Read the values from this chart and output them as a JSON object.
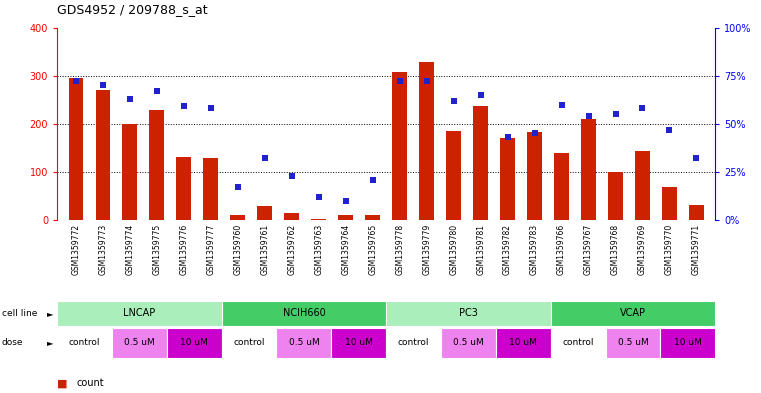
{
  "title": "GDS4952 / 209788_s_at",
  "samples": [
    "GSM1359772",
    "GSM1359773",
    "GSM1359774",
    "GSM1359775",
    "GSM1359776",
    "GSM1359777",
    "GSM1359760",
    "GSM1359761",
    "GSM1359762",
    "GSM1359763",
    "GSM1359764",
    "GSM1359765",
    "GSM1359778",
    "GSM1359779",
    "GSM1359780",
    "GSM1359781",
    "GSM1359782",
    "GSM1359783",
    "GSM1359766",
    "GSM1359767",
    "GSM1359768",
    "GSM1359769",
    "GSM1359770",
    "GSM1359771"
  ],
  "counts": [
    295,
    270,
    200,
    228,
    130,
    128,
    10,
    30,
    15,
    3,
    10,
    10,
    308,
    328,
    185,
    238,
    170,
    182,
    140,
    210,
    100,
    143,
    68,
    32
  ],
  "percentiles": [
    72,
    70,
    63,
    67,
    59,
    58,
    17,
    32,
    23,
    12,
    10,
    21,
    72,
    72,
    62,
    65,
    43,
    45,
    60,
    54,
    55,
    58,
    47,
    32
  ],
  "bar_color": "#CC2200",
  "dot_color": "#2222CC",
  "ylim_left": [
    0,
    400
  ],
  "ylim_right": [
    0,
    100
  ],
  "yticks_left": [
    0,
    100,
    200,
    300,
    400
  ],
  "ytick_labels_left": [
    "0",
    "100",
    "200",
    "300",
    "400"
  ],
  "yticks_right": [
    0,
    25,
    50,
    75,
    100
  ],
  "ytick_labels_right": [
    "0%",
    "25%",
    "50%",
    "75%",
    "100%"
  ],
  "cell_line_spans": [
    {
      "name": "LNCAP",
      "start": 0,
      "end": 6,
      "color": "#AAEEBB"
    },
    {
      "name": "NCIH660",
      "start": 6,
      "end": 12,
      "color": "#44CC66"
    },
    {
      "name": "PC3",
      "start": 12,
      "end": 18,
      "color": "#AAEEBB"
    },
    {
      "name": "VCAP",
      "start": 18,
      "end": 24,
      "color": "#44CC66"
    }
  ],
  "dose_sequence": [
    {
      "label": "control",
      "start": 0,
      "end": 2,
      "color": "#FFFFFF"
    },
    {
      "label": "0.5 uM",
      "start": 2,
      "end": 4,
      "color": "#EE82EE"
    },
    {
      "label": "10 uM",
      "start": 4,
      "end": 6,
      "color": "#CC00CC"
    },
    {
      "label": "control",
      "start": 6,
      "end": 8,
      "color": "#FFFFFF"
    },
    {
      "label": "0.5 uM",
      "start": 8,
      "end": 10,
      "color": "#EE82EE"
    },
    {
      "label": "10 uM",
      "start": 10,
      "end": 12,
      "color": "#CC00CC"
    },
    {
      "label": "control",
      "start": 12,
      "end": 14,
      "color": "#FFFFFF"
    },
    {
      "label": "0.5 uM",
      "start": 14,
      "end": 16,
      "color": "#EE82EE"
    },
    {
      "label": "10 uM",
      "start": 16,
      "end": 18,
      "color": "#CC00CC"
    },
    {
      "label": "control",
      "start": 18,
      "end": 20,
      "color": "#FFFFFF"
    },
    {
      "label": "0.5 uM",
      "start": 20,
      "end": 22,
      "color": "#EE82EE"
    },
    {
      "label": "10 uM",
      "start": 22,
      "end": 24,
      "color": "#CC00CC"
    }
  ],
  "grid_yticks": [
    100,
    200,
    300
  ],
  "chart_facecolor": "#FFFFFF",
  "fig_facecolor": "#FFFFFF",
  "xticklabel_area_color": "#CCCCCC"
}
